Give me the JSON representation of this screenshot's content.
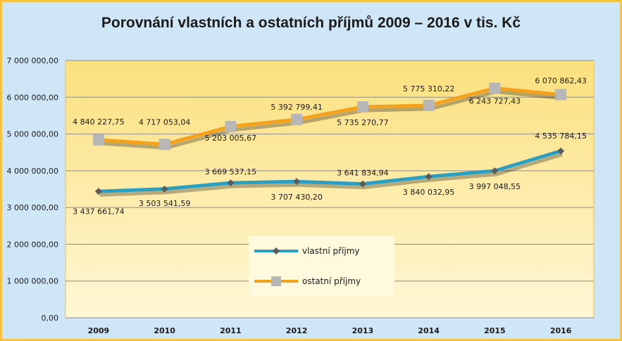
{
  "chart_data": {
    "type": "line",
    "title": "Porovnání vlastních a ostatních příjmů 2009 – 2016 v tis. Kč",
    "categories": [
      "2009",
      "2010",
      "2011",
      "2012",
      "2013",
      "2014",
      "2015",
      "2016"
    ],
    "ylim": [
      0,
      7000000
    ],
    "yticks": [
      0,
      1000000,
      2000000,
      3000000,
      4000000,
      5000000,
      6000000,
      7000000
    ],
    "ytick_labels": [
      "0,00",
      "1 000 000,00",
      "2 000 000,00",
      "3 000 000,00",
      "4 000 000,00",
      "5 000 000,00",
      "6 000 000,00",
      "7 000 000,00"
    ],
    "grid": true,
    "legend_position": "center-bottom",
    "series": [
      {
        "name": "vlastní příjmy",
        "color": "#2a9fc4",
        "marker_color": "#5b5b5b",
        "values": [
          3437661.74,
          3503541.59,
          3669537.15,
          3707430.2,
          3641834.94,
          3840032.95,
          3997048.55,
          4535784.15
        ],
        "labels": [
          "3 437 661,74",
          "3 503 541,59",
          "3 669 537,15",
          "3 707 430,20",
          "3 641 834,94",
          "3 840 032,95",
          "3 997 048,55",
          "4 535 784,15"
        ]
      },
      {
        "name": "ostatní příjmy",
        "color": "#f4a21c",
        "marker_color": "#b7b7b7",
        "values": [
          4840227.75,
          4717053.04,
          5203005.67,
          5392799.41,
          5735270.77,
          5775310.22,
          6243727.43,
          6070862.43
        ],
        "labels": [
          "4 840 227,75",
          "4 717 053,04",
          "5 203 005,67",
          "5 392 799,41",
          "5 735 270,77",
          "5 775 310,22",
          "6 243 727,43",
          "6 070 862,43"
        ]
      }
    ]
  }
}
